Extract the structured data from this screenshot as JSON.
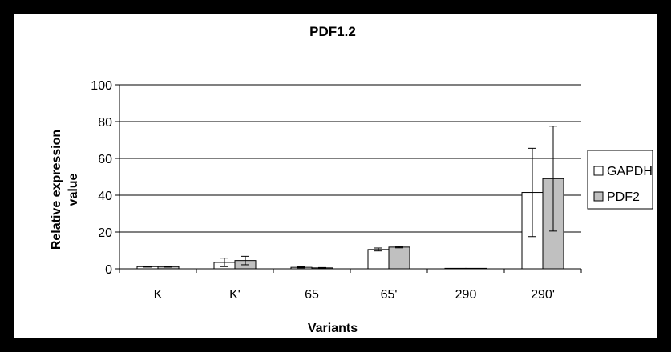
{
  "chart_data": {
    "type": "bar",
    "title": "PDF1.2",
    "xlabel": "Variants",
    "ylabel": "Relative expression value",
    "categories": [
      "K",
      "K'",
      "65",
      "65'",
      "290",
      "290'"
    ],
    "ylim": [
      0,
      100
    ],
    "yticks": [
      0,
      20,
      40,
      60,
      80,
      100
    ],
    "grid": true,
    "legend_position": "right",
    "series": [
      {
        "name": "GAPDH",
        "color": "#ffffff",
        "values": [
          1.2,
          3.5,
          0.8,
          10.5,
          0.1,
          41.5
        ],
        "error": [
          0.3,
          2.3,
          0.3,
          0.8,
          0.05,
          24
        ]
      },
      {
        "name": "PDF2",
        "color": "#c0c0c0",
        "values": [
          1.2,
          4.5,
          0.5,
          11.8,
          0.1,
          49
        ],
        "error": [
          0.3,
          2.3,
          0.2,
          0.4,
          0.05,
          28.5
        ]
      }
    ]
  }
}
